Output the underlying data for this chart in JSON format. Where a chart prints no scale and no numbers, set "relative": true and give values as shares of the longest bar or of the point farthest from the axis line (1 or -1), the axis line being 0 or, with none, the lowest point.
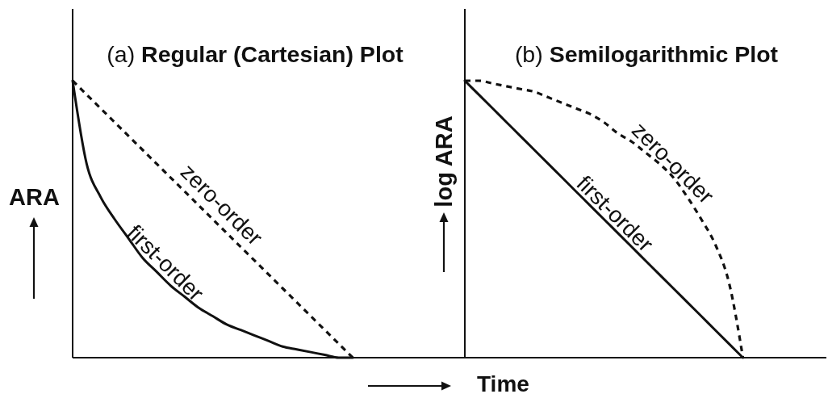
{
  "chart_data": [
    {
      "type": "line",
      "title": "(a) Regular (Cartesian) Plot",
      "ylabel": "ARA",
      "relative": true,
      "categories": [
        null,
        null,
        null,
        null,
        null,
        null,
        null,
        null,
        null,
        null,
        null,
        null,
        null,
        null,
        null,
        null,
        null,
        null,
        null,
        null,
        null,
        null,
        null,
        null,
        null,
        null,
        null,
        null,
        null
      ],
      "series": [
        {
          "name": "zero-order",
          "color": "#111111",
          "line_style": "dashed",
          "values": [
            1,
            0.95,
            0.9,
            0.85,
            0.8,
            0.75,
            0.7,
            0.65,
            0.6,
            0.55,
            0.5,
            0.45,
            0.4,
            0.35,
            0.3,
            0.25,
            0.2,
            0.15,
            0.1,
            0.05,
            0,
            null,
            null,
            null,
            null,
            null,
            null,
            null,
            null
          ]
        },
        {
          "name": "first-order",
          "color": "#111111",
          "line_style": "solid",
          "values": [
            1,
            0.7,
            0.58,
            0.5,
            0.43,
            0.36,
            0.31,
            0.26,
            0.22,
            0.18,
            0.15,
            0.12,
            0.1,
            0.08,
            0.06,
            0.04,
            0.03,
            0.02,
            0.01,
            0,
            0,
            null,
            null,
            null,
            null,
            null,
            null,
            null,
            null
          ]
        }
      ]
    },
    {
      "type": "line",
      "title": "(b) Semilogarithmic Plot",
      "ylabel": "log ARA",
      "xlabel": "Time",
      "relative": true,
      "categories": [
        null,
        null,
        null,
        null,
        null,
        null,
        null,
        null,
        null,
        null,
        null,
        null,
        null,
        null,
        null,
        null,
        null,
        null,
        null,
        null,
        null,
        null,
        null,
        null,
        null,
        null,
        null
      ],
      "series": [
        {
          "name": "zero-order",
          "color": "#111111",
          "line_style": "dashed",
          "values": [
            1,
            1,
            0.99,
            0.98,
            0.97,
            0.96,
            0.94,
            0.92,
            0.9,
            0.88,
            0.85,
            0.81,
            0.78,
            0.74,
            0.7,
            0.65,
            0.58,
            0.5,
            0.41,
            0.27,
            0,
            null,
            null,
            null,
            null,
            null,
            null
          ]
        },
        {
          "name": "first-order",
          "color": "#111111",
          "line_style": "solid",
          "values": [
            1,
            0.95,
            0.9,
            0.85,
            0.8,
            0.75,
            0.7,
            0.65,
            0.6,
            0.55,
            0.5,
            0.45,
            0.4,
            0.35,
            0.3,
            0.25,
            0.2,
            0.15,
            0.1,
            0.05,
            0,
            null,
            null,
            null,
            null,
            null,
            null
          ]
        }
      ]
    }
  ]
}
